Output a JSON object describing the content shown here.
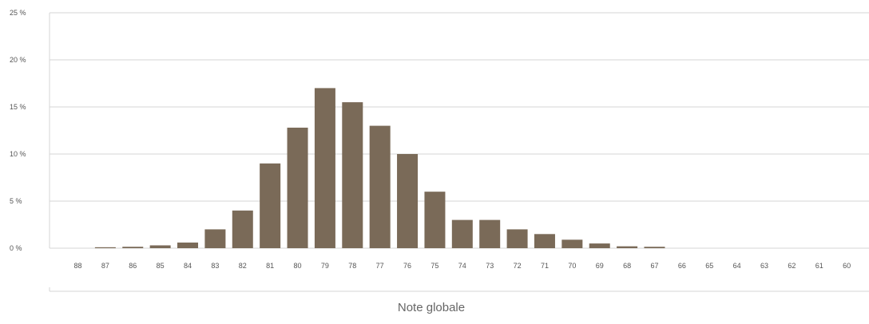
{
  "chart_data": {
    "type": "bar",
    "xlabel": "Note globale",
    "ylabel": "",
    "ylim": [
      0,
      25
    ],
    "yticks": [
      "0 %",
      "5 %",
      "10 %",
      "15 %",
      "20 %",
      "25 %"
    ],
    "categories": [
      "88",
      "87",
      "86",
      "85",
      "84",
      "83",
      "82",
      "81",
      "80",
      "79",
      "78",
      "77",
      "76",
      "75",
      "74",
      "73",
      "72",
      "71",
      "70",
      "69",
      "68",
      "67",
      "66",
      "65",
      "64",
      "63",
      "62",
      "61",
      "60"
    ],
    "values": [
      0,
      0.1,
      0.15,
      0.3,
      0.6,
      2,
      4,
      9,
      12.8,
      17,
      15.5,
      13,
      10,
      6,
      3,
      3,
      2,
      1.5,
      0.9,
      0.5,
      0.2,
      0.15,
      0,
      0,
      0,
      0,
      0,
      0,
      0
    ],
    "grid": true,
    "colors": {
      "bar": "#7a6a58",
      "grid": "#d6d6d6",
      "tick_text": "#555555",
      "axis_label": "#666666"
    }
  }
}
